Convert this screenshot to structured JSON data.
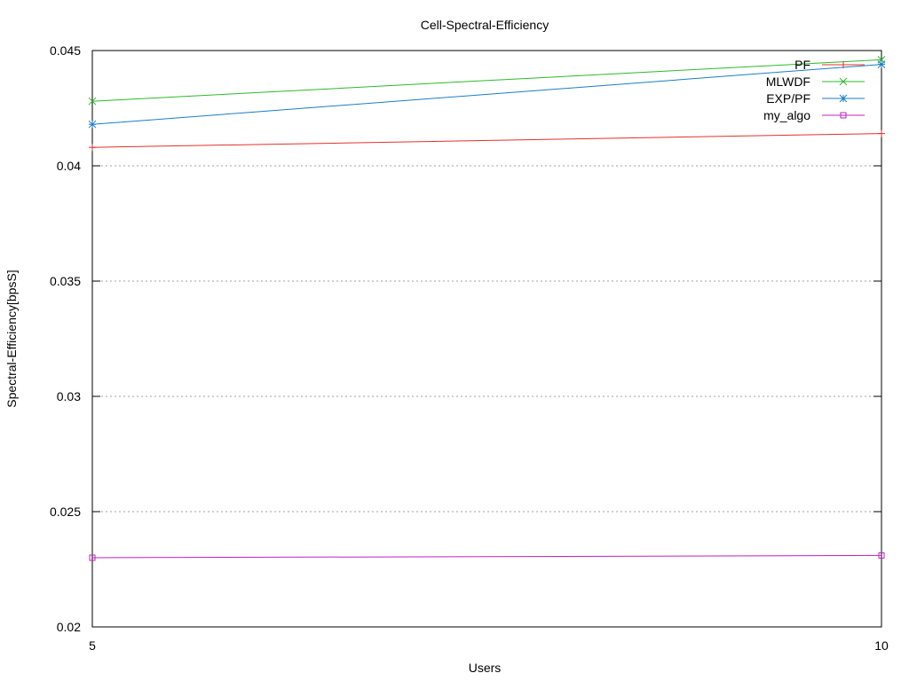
{
  "chart_data": {
    "type": "line",
    "title": "Cell-Spectral-Efficiency",
    "xlabel": "Users",
    "ylabel": "Spectral-Efficiency[bpsS]",
    "x": [
      5,
      10
    ],
    "x_ticks": [
      "5",
      "10"
    ],
    "xlim": [
      5,
      10
    ],
    "ylim": [
      0.02,
      0.045
    ],
    "y_ticks": [
      "0.02",
      "0.025",
      "0.03",
      "0.035",
      "0.04",
      "0.045"
    ],
    "grid": "horizontal dotted",
    "legend_position": "top-right",
    "series": [
      {
        "name": "PF",
        "marker": "plus",
        "color": "#e4302b",
        "values": [
          0.0408,
          0.0414
        ]
      },
      {
        "name": "MLWDF",
        "marker": "cross",
        "color": "#2eb82e",
        "values": [
          0.0428,
          0.0446
        ]
      },
      {
        "name": "EXP/PF",
        "marker": "star",
        "color": "#1a7dc8",
        "values": [
          0.0418,
          0.0444
        ]
      },
      {
        "name": "my_algo",
        "marker": "square",
        "color": "#c020c0",
        "values": [
          0.023,
          0.0231
        ]
      }
    ]
  }
}
